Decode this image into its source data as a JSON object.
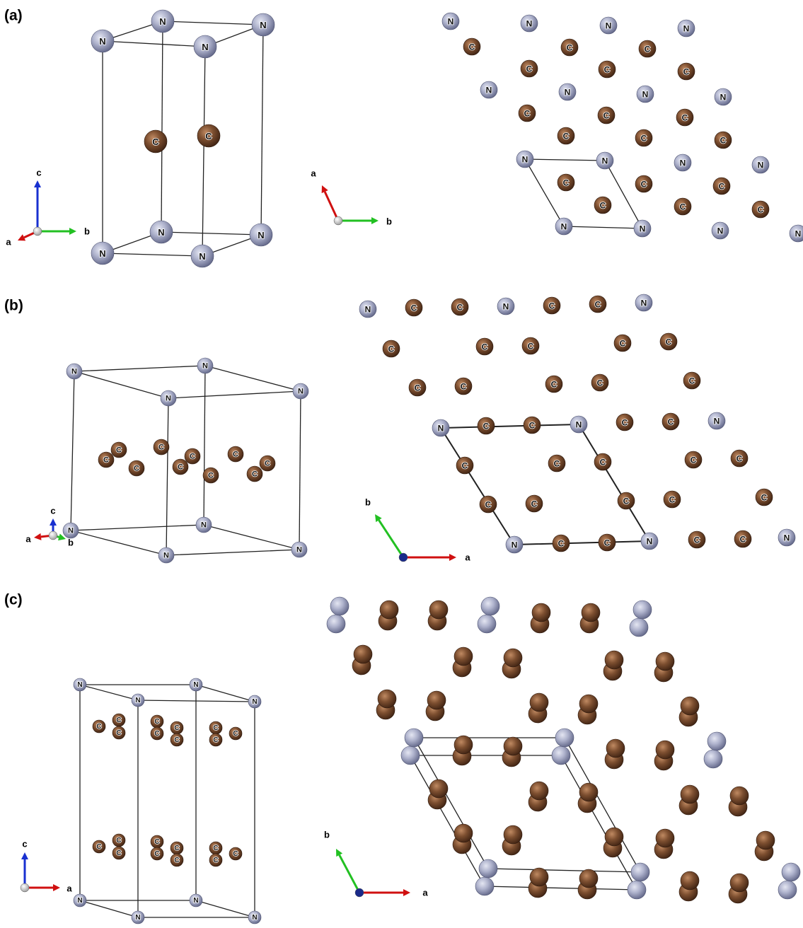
{
  "panels": [
    {
      "label": "(a)",
      "views": [
        {
          "atoms": [
            "N",
            "N",
            "N",
            "N",
            "N",
            "N",
            "N",
            "N",
            "C",
            "C"
          ],
          "axes": [
            "a",
            "b",
            "c"
          ]
        },
        {
          "atoms": [
            "N",
            "N",
            "N",
            "N",
            "N",
            "N",
            "N",
            "N",
            "N",
            "N",
            "N",
            "N",
            "N",
            "N",
            "N",
            "N",
            "C",
            "C",
            "C",
            "C",
            "C",
            "C",
            "C",
            "C",
            "C",
            "C",
            "C",
            "C",
            "C",
            "C",
            "C",
            "C",
            "C",
            "C"
          ],
          "axes": [
            "a",
            "b"
          ]
        }
      ]
    },
    {
      "label": "(b)",
      "views": [
        {
          "atoms": [
            "N",
            "N",
            "N",
            "N",
            "N",
            "N",
            "N",
            "N",
            "C",
            "C",
            "C",
            "C",
            "C",
            "C",
            "C",
            "C",
            "C",
            "C"
          ],
          "axes": [
            "c",
            "a",
            "b"
          ]
        },
        {
          "atoms": [
            "N",
            "N",
            "N",
            "N",
            "N",
            "N",
            "N",
            "N",
            "N",
            "C",
            "C",
            "C",
            "C",
            "C",
            "C",
            "C",
            "C",
            "C",
            "C",
            "C",
            "C",
            "C",
            "C",
            "C",
            "C",
            "C",
            "C",
            "C",
            "C",
            "C",
            "C",
            "C",
            "C",
            "C",
            "C",
            "C",
            "C",
            "C",
            "C",
            "C",
            "C"
          ],
          "axes": [
            "b",
            "a"
          ]
        }
      ]
    },
    {
      "label": "(c)",
      "views": [
        {
          "atoms": [
            "N",
            "N",
            "N",
            "N",
            "N",
            "N",
            "N",
            "N",
            "C",
            "C",
            "C",
            "C",
            "C",
            "C",
            "C",
            "C",
            "C",
            "C",
            "C",
            "C",
            "C",
            "C",
            "C",
            "C",
            "C",
            "C",
            "C",
            "C"
          ],
          "axes": [
            "c",
            "a"
          ]
        },
        {
          "atoms": [],
          "axes": [
            "b",
            "a"
          ]
        }
      ]
    }
  ]
}
